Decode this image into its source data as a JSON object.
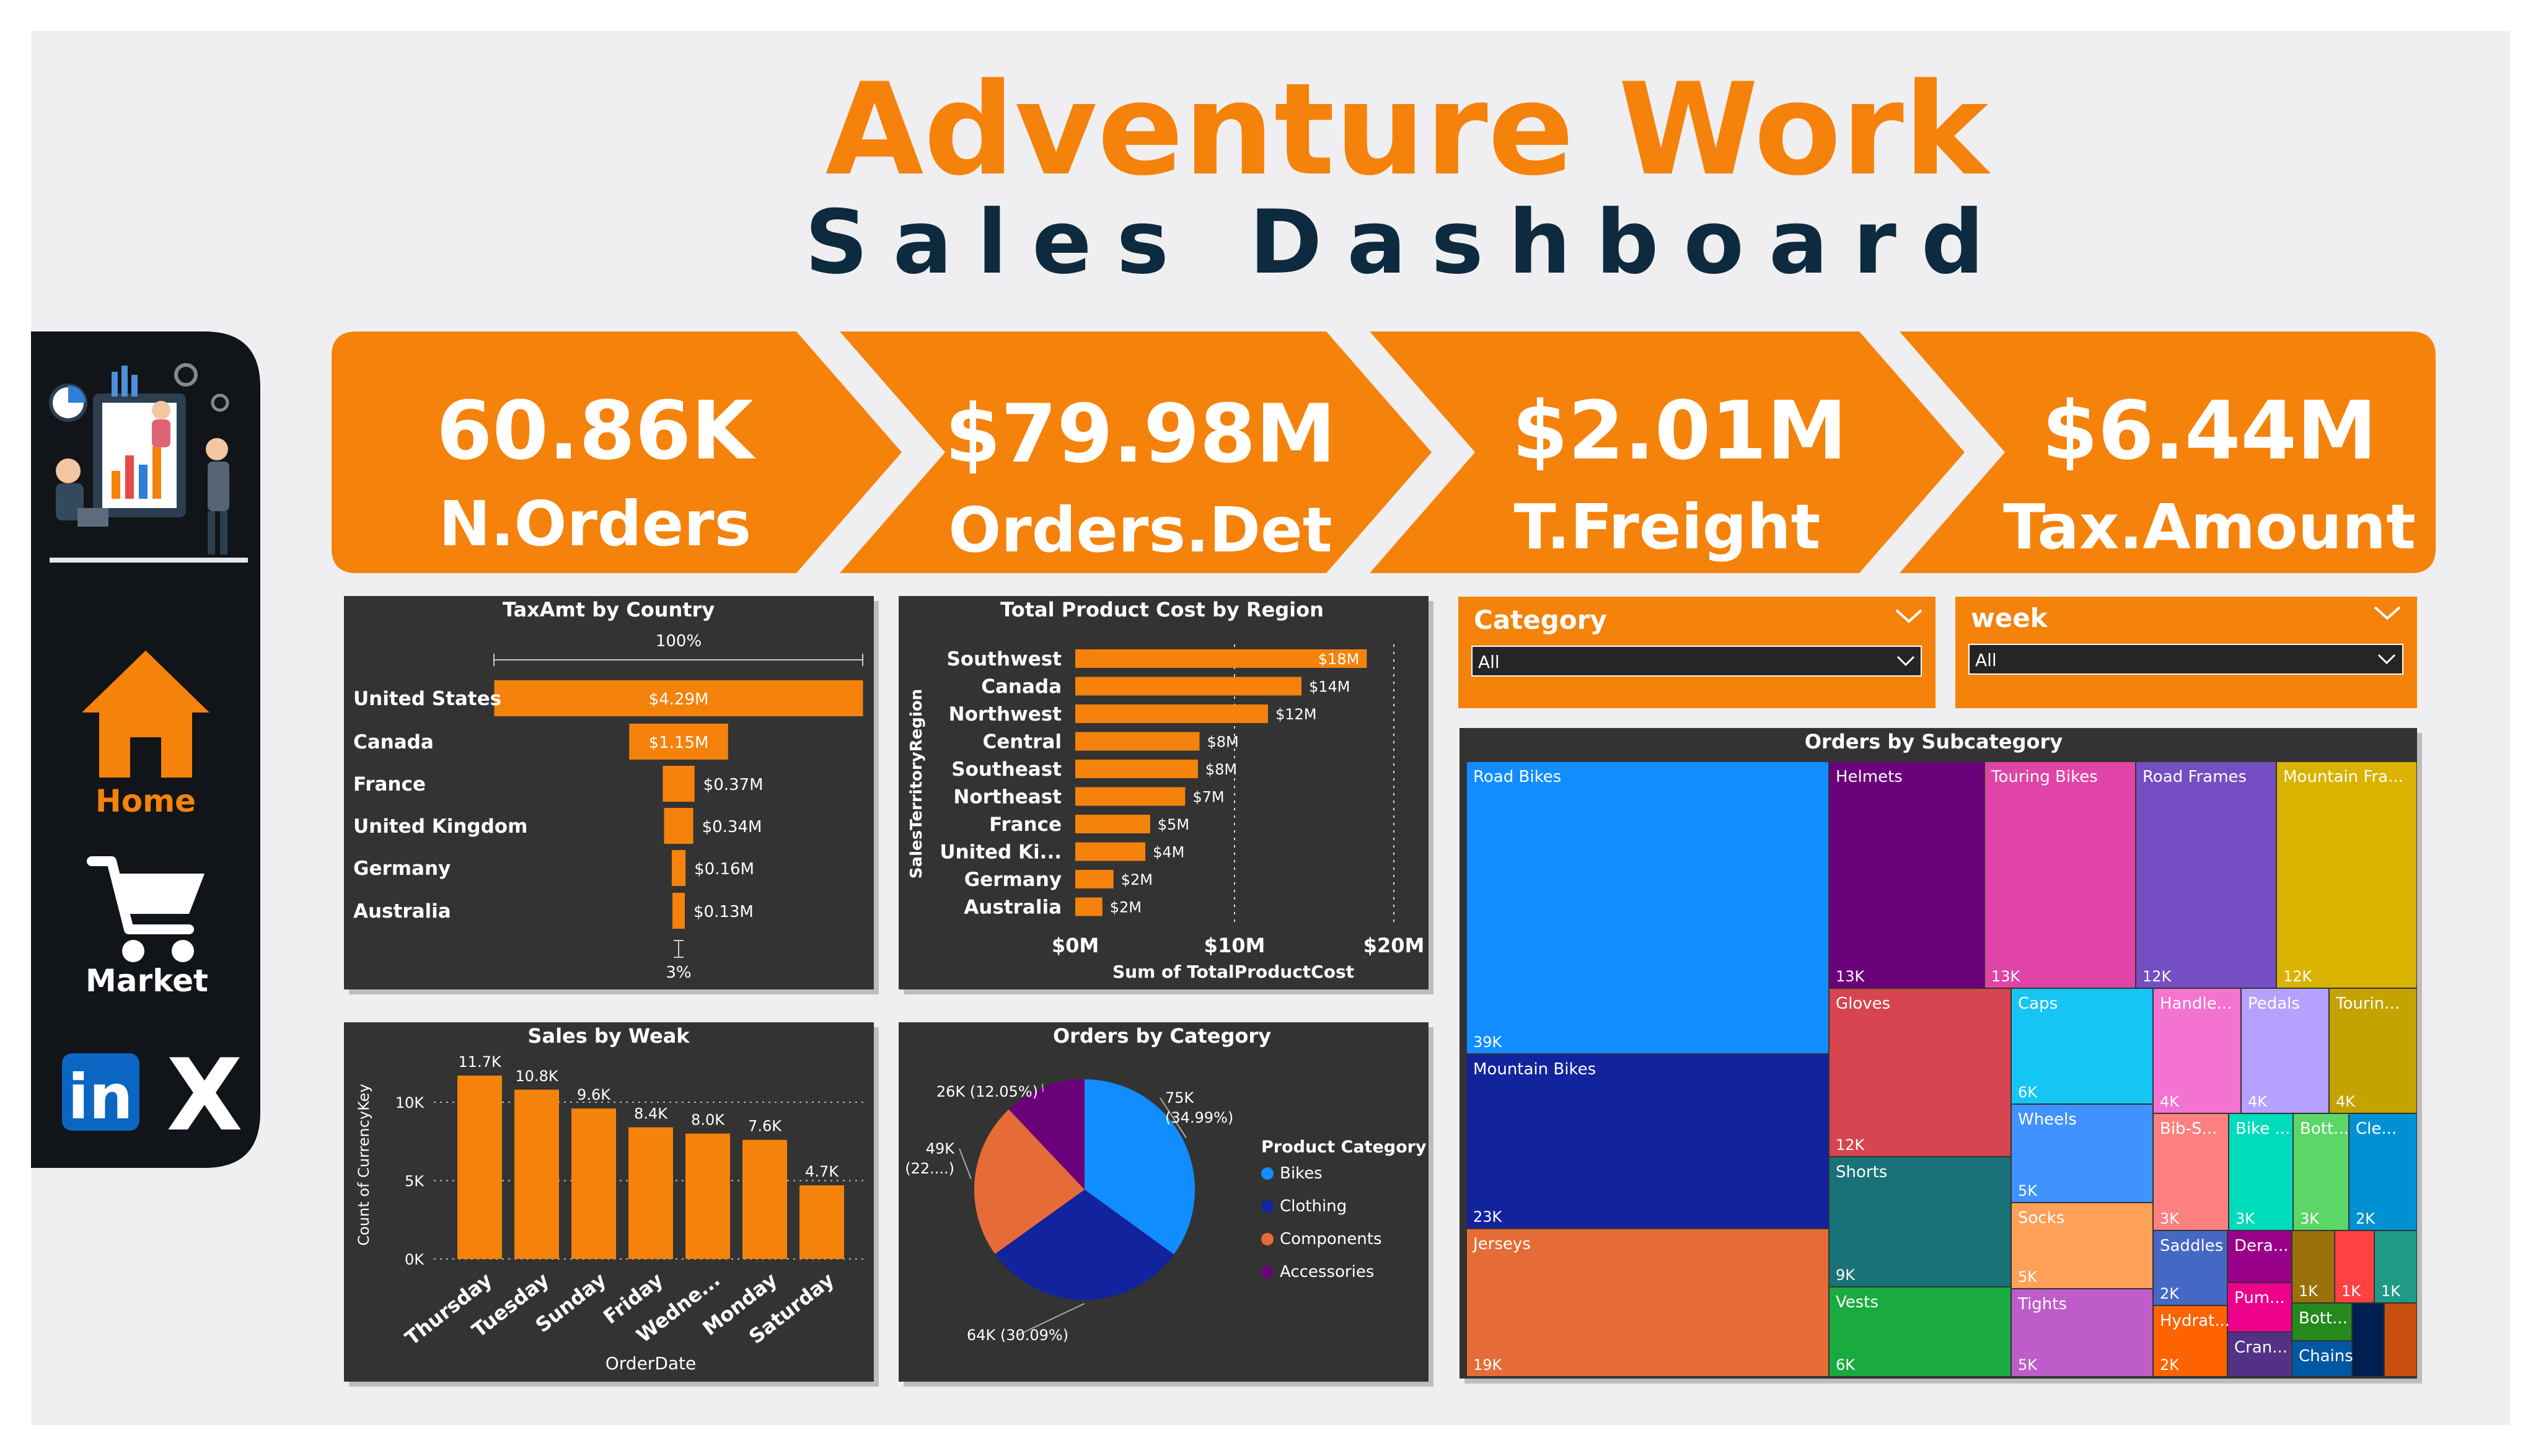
{
  "header": {
    "title": "Adventure Work",
    "subtitle": "Sales Dashboard"
  },
  "colors": {
    "orange": "#f5820b",
    "dark": "#333333",
    "navy": "#0e2a3e",
    "sidebar": "#111418"
  },
  "sidebar": {
    "illustration": "analytics-team-icon",
    "items": [
      {
        "label": "Home",
        "icon": "home-icon"
      },
      {
        "label": "Market",
        "icon": "cart-icon"
      }
    ],
    "social": [
      {
        "label": "in",
        "icon": "linkedin-icon"
      },
      {
        "label": "X",
        "icon": "x-icon"
      }
    ]
  },
  "kpis": [
    {
      "value": "60.86K",
      "label": "N.Orders"
    },
    {
      "value": "$79.98M",
      "label": "Orders.Det"
    },
    {
      "value": "$2.01M",
      "label": "T.Freight"
    },
    {
      "value": "$6.44M",
      "label": "Tax.Amount"
    }
  ],
  "filters": [
    {
      "title": "Category",
      "value": "All"
    },
    {
      "title": "week",
      "value": "All"
    }
  ],
  "chart_data": [
    {
      "type": "funnel",
      "title": "TaxAmt by Country",
      "top_label": "100%",
      "bottom_label": "3%",
      "categories": [
        "United States",
        "Canada",
        "France",
        "United Kingdom",
        "Germany",
        "Australia"
      ],
      "values": [
        4.29,
        1.15,
        0.37,
        0.34,
        0.16,
        0.13
      ],
      "value_labels": [
        "$4.29M",
        "$1.15M",
        "$0.37M",
        "$0.34M",
        "$0.16M",
        "$0.13M"
      ]
    },
    {
      "type": "bar",
      "orientation": "horizontal",
      "title": "Total Product Cost by Region",
      "ylabel": "SalesTerritoryRegion",
      "xlabel": "Sum of TotalProductCost",
      "xlim": [
        0,
        20
      ],
      "xticks": [
        "$0M",
        "$10M",
        "$20M"
      ],
      "categories": [
        "Southwest",
        "Canada",
        "Northwest",
        "Central",
        "Southeast",
        "Northeast",
        "France",
        "United Ki...",
        "Germany",
        "Australia"
      ],
      "values": [
        18.3,
        14.2,
        12.1,
        7.8,
        7.7,
        6.9,
        4.7,
        4.4,
        2.4,
        1.7
      ],
      "value_labels": [
        "$18M",
        "$14M",
        "$12M",
        "$8M",
        "$8M",
        "$7M",
        "$5M",
        "$4M",
        "$2M",
        "$2M"
      ]
    },
    {
      "type": "bar",
      "title": "Sales by Weak",
      "ylabel": "Count of CurrencyKey",
      "xlabel": "OrderDate",
      "ylim": [
        0,
        12.5
      ],
      "yticks": [
        0,
        5,
        10
      ],
      "ytick_labels": [
        "0K",
        "5K",
        "10K"
      ],
      "categories": [
        "Thursday",
        "Tuesday",
        "Sunday",
        "Friday",
        "Wedne...",
        "Monday",
        "Saturday"
      ],
      "values": [
        11.7,
        10.8,
        9.6,
        8.4,
        8.0,
        7.6,
        4.7
      ],
      "value_labels": [
        "11.7K",
        "10.8K",
        "9.6K",
        "8.4K",
        "8.0K",
        "7.6K",
        "4.7K"
      ]
    },
    {
      "type": "pie",
      "title": "Orders by Category",
      "legend_title": "Product Category",
      "categories": [
        "Bikes",
        "Clothing",
        "Components",
        "Accessories"
      ],
      "values": [
        34.99,
        30.09,
        22.87,
        12.05
      ],
      "colors": [
        "#118dff",
        "#12239e",
        "#e66c37",
        "#6b007b"
      ],
      "slice_labels": [
        {
          "line1": "75K",
          "line2": "(34.99%)"
        },
        {
          "line1": "64K (30.09%)",
          "line2": ""
        },
        {
          "line1": "49K",
          "line2": "(22....)"
        },
        {
          "line1": "26K (12.05%)",
          "line2": ""
        }
      ]
    },
    {
      "type": "treemap",
      "title": "Orders by Subcategory",
      "items": [
        {
          "name": "Road Bikes",
          "value": "39K",
          "color": "#118dff"
        },
        {
          "name": "Mountain Bikes",
          "value": "23K",
          "color": "#12239e"
        },
        {
          "name": "Jerseys",
          "value": "19K",
          "color": "#e66c37"
        },
        {
          "name": "Helmets",
          "value": "13K",
          "color": "#6b007b"
        },
        {
          "name": "Touring Bikes",
          "value": "13K",
          "color": "#e044a7"
        },
        {
          "name": "Road Frames",
          "value": "12K",
          "color": "#744ec2"
        },
        {
          "name": "Mountain Fra...",
          "value": "12K",
          "color": "#d9b300"
        },
        {
          "name": "Gloves",
          "value": "12K",
          "color": "#d64550"
        },
        {
          "name": "Shorts",
          "value": "9K",
          "color": "#197278"
        },
        {
          "name": "Vests",
          "value": "6K",
          "color": "#1aab40"
        },
        {
          "name": "Caps",
          "value": "6K",
          "color": "#15c6f4"
        },
        {
          "name": "Wheels",
          "value": "5K",
          "color": "#4092ff"
        },
        {
          "name": "Socks",
          "value": "5K",
          "color": "#ffa058"
        },
        {
          "name": "Tights",
          "value": "5K",
          "color": "#be5dc9"
        },
        {
          "name": "Handle...",
          "value": "4K",
          "color": "#f472d0"
        },
        {
          "name": "Pedals",
          "value": "4K",
          "color": "#b5a1ff"
        },
        {
          "name": "Tourin...",
          "value": "4K",
          "color": "#c4a200"
        },
        {
          "name": "Bib-S...",
          "value": "3K",
          "color": "#ff8080"
        },
        {
          "name": "Bike ...",
          "value": "3K",
          "color": "#00dbbc"
        },
        {
          "name": "Bott...",
          "value": "3K",
          "color": "#5bd667"
        },
        {
          "name": "Cle...",
          "value": "2K",
          "color": "#0091d5"
        },
        {
          "name": "Saddles",
          "value": "2K",
          "color": "#4668c5"
        },
        {
          "name": "Hydrat...",
          "value": "2K",
          "color": "#ff6300"
        },
        {
          "name": "Dera...",
          "value": "",
          "color": "#99008a"
        },
        {
          "name": "Pum...",
          "value": "",
          "color": "#ec008c"
        },
        {
          "name": "Cran...",
          "value": "",
          "color": "#533285"
        },
        {
          "name": "",
          "value": "1K",
          "color": "#99700a"
        },
        {
          "name": "",
          "value": "1K",
          "color": "#ff4141"
        },
        {
          "name": "",
          "value": "1K",
          "color": "#1f9a85"
        },
        {
          "name": "Bott...",
          "value": "",
          "color": "#25891c"
        },
        {
          "name": "Chains",
          "value": "",
          "color": "#0057a2"
        },
        {
          "name": "",
          "value": "",
          "color": "#002050"
        },
        {
          "name": "",
          "value": "",
          "color": "#c94f0f"
        }
      ]
    }
  ]
}
